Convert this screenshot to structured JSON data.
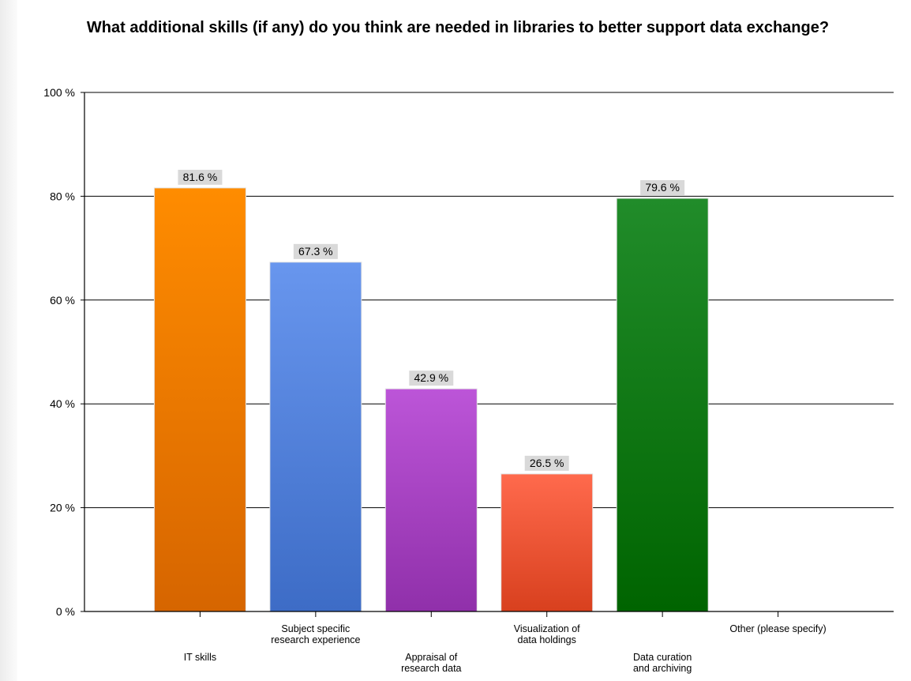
{
  "chart_data": {
    "type": "bar",
    "title": "What additional skills (if any) do you think are needed in libraries to better support data exchange?",
    "xlabel": "",
    "ylabel": "",
    "ylim": [
      0,
      100
    ],
    "y_ticks": [
      0,
      20,
      40,
      60,
      80,
      100
    ],
    "y_tick_suffix": " %",
    "grid": true,
    "legend": "none",
    "categories": [
      "IT skills",
      "Subject specific research experience",
      "Appraisal of research data",
      "Visualization of data holdings",
      "Data curation and archiving",
      "Other (please specify)"
    ],
    "category_label_lines": [
      [
        "IT skills"
      ],
      [
        "Subject specific",
        "research experience"
      ],
      [
        "Appraisal of",
        "research data"
      ],
      [
        "Visualization of",
        "data holdings"
      ],
      [
        "Data curation",
        "and archiving"
      ],
      [
        "Other (please specify)"
      ]
    ],
    "values": [
      81.6,
      67.3,
      42.9,
      26.5,
      79.6,
      null
    ],
    "value_labels": [
      "81.6 %",
      "67.3 %",
      "42.9 %",
      "26.5 %",
      "79.6 %",
      ""
    ],
    "colors": [
      [
        "#ff8c00",
        "#d66500"
      ],
      [
        "#6896ee",
        "#3d6cc6"
      ],
      [
        "#bc55d8",
        "#9030aa"
      ],
      [
        "#ff6a4d",
        "#d8401e"
      ],
      [
        "#218c2a",
        "#006400"
      ],
      [
        "#cccccc",
        "#aaaaaa"
      ]
    ]
  }
}
